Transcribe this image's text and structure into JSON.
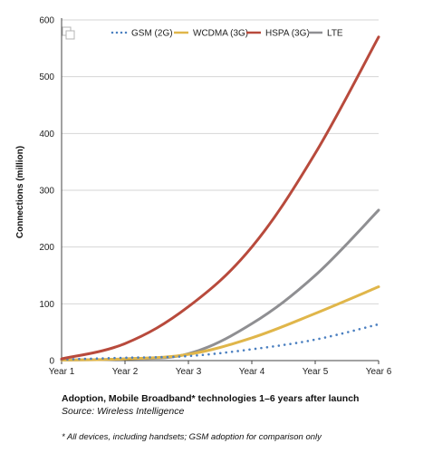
{
  "chart_data": {
    "type": "line",
    "x": [
      "Year 1",
      "Year 2",
      "Year 3",
      "Year 4",
      "Year 5",
      "Year 6"
    ],
    "xlabel": "",
    "ylabel": "Connections (million)",
    "ylim": [
      0,
      600
    ],
    "yticks": [
      0,
      100,
      200,
      300,
      400,
      500,
      600
    ],
    "grid": "horizontal",
    "legend_position": "top",
    "series": [
      {
        "name": "GSM (2G)",
        "values": [
          2,
          5,
          8,
          20,
          37,
          64
        ],
        "color": "#4a7fc0",
        "style": "dotted"
      },
      {
        "name": "WCDMA (3G)",
        "values": [
          1,
          3,
          11,
          40,
          83,
          130
        ],
        "color": "#e0b64a",
        "style": "solid"
      },
      {
        "name": "HSPA (3G)",
        "values": [
          3,
          30,
          95,
          200,
          365,
          570
        ],
        "color": "#b84a3c",
        "style": "solid"
      },
      {
        "name": "LTE",
        "values": [
          1,
          3,
          12,
          65,
          150,
          265
        ],
        "color": "#8f8f92",
        "style": "solid"
      }
    ]
  },
  "caption": {
    "title": "Adoption, Mobile Broadband* technologies 1–6 years after launch",
    "source": "Source: Wireless Intelligence",
    "footnote": "* All devices, including handsets; GSM adoption for comparison only"
  }
}
